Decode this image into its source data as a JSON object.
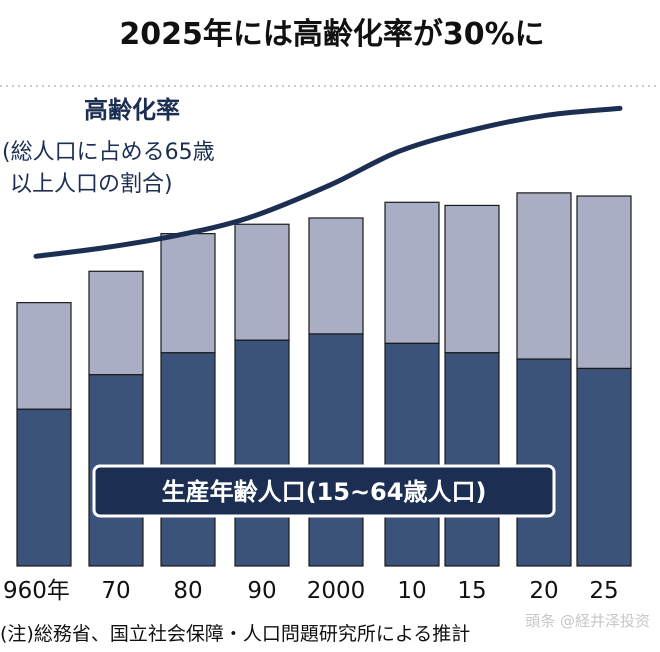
{
  "chart_data": {
    "type": "bar",
    "title": "2025年には高齢化率が30%に",
    "categories": [
      "960年",
      "70",
      "80",
      "90",
      "2000",
      "10",
      "15",
      "20",
      "25"
    ],
    "series": [
      {
        "name": "生産年齢人口(15~64歳人口)",
        "values": [
          50,
          61,
          68,
          72,
          74,
          71,
          68,
          66,
          63
        ]
      },
      {
        "name": "",
        "values": [
          34,
          33,
          38,
          37,
          37,
          45,
          47,
          53,
          55
        ]
      }
    ],
    "ylim": [
      0,
      155
    ],
    "line_series": {
      "name": "高齢化率",
      "values": [
        5.7,
        7.1,
        9.1,
        12.1,
        17.4,
        23.0,
        26.6,
        28.9,
        30.0
      ],
      "ylim": [
        0,
        34
      ]
    },
    "grid": false,
    "colors": {
      "lower": "#3b527a",
      "upper": "#a9aec4",
      "line": "#1c2f52",
      "badge": "#1c2f52"
    }
  },
  "labels": {
    "rate_label": "高齢化率",
    "rate_sub_line1": "(総人口に占める65歳",
    "rate_sub_line2": "以上人口の割合)",
    "badge": "生産年齢人口(15~64歳人口)",
    "note": "(注)総務省、国立社会保障・人口問題研究所による推計",
    "watermark": "頭条 @経井泽投资"
  }
}
